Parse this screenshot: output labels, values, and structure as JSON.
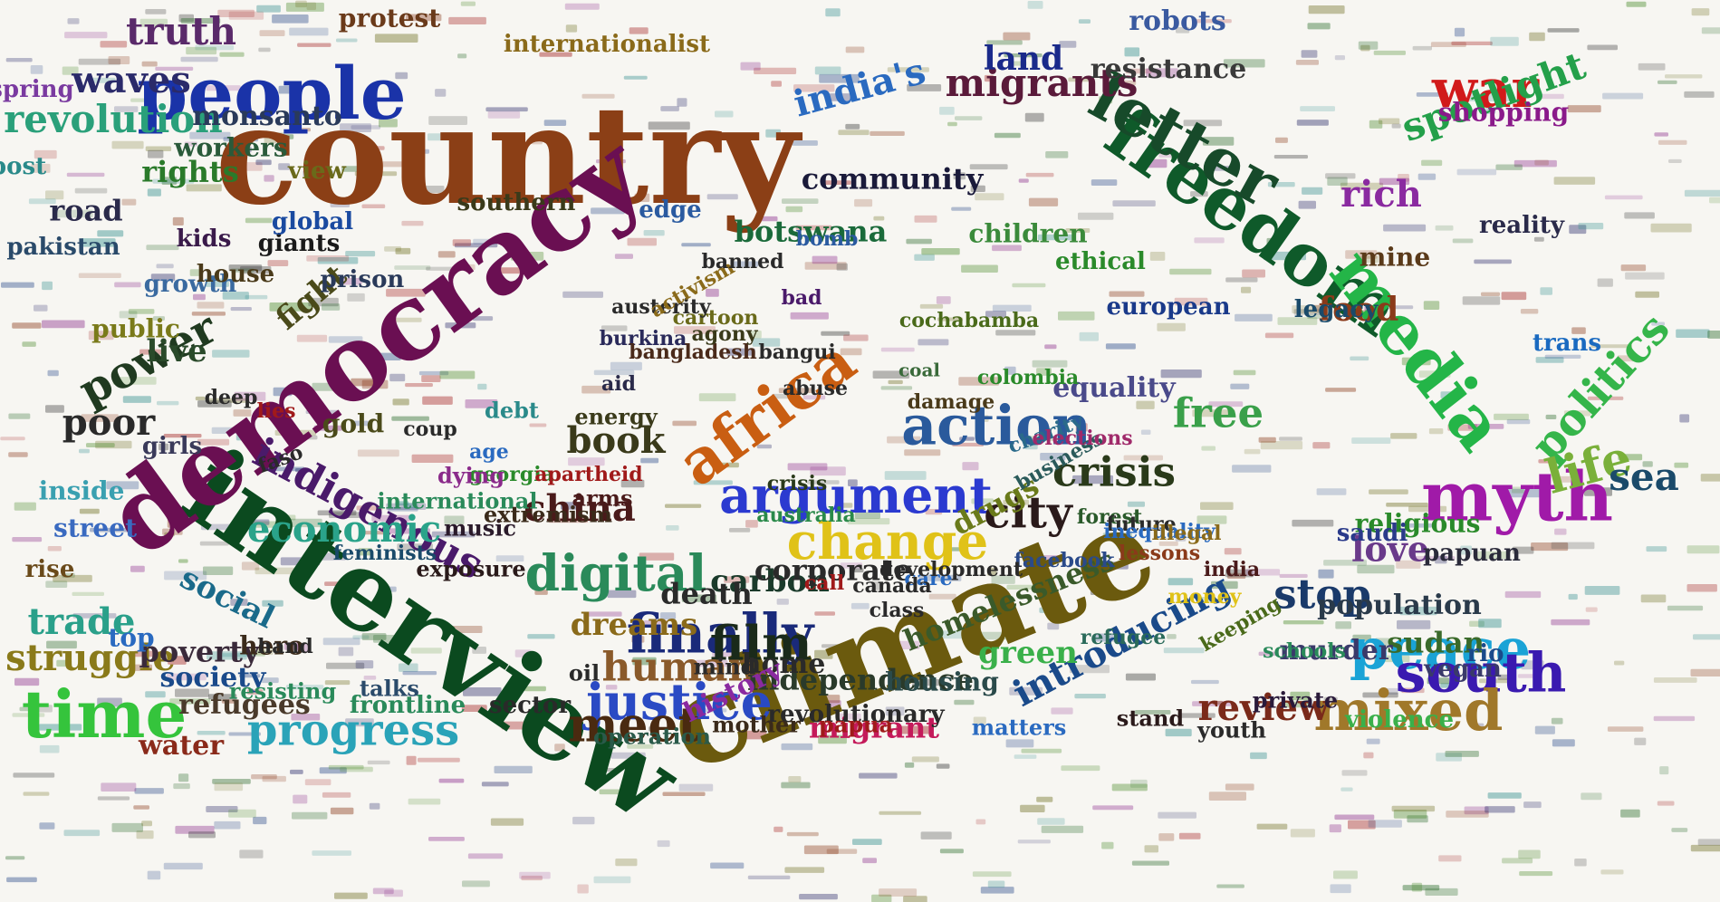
{
  "words": [
    {
      "text": "country",
      "color": "#8b3f16"
    },
    {
      "text": "climate",
      "color": "#6b5a0e"
    },
    {
      "text": "interview",
      "color": "#0b4a1f"
    },
    {
      "text": "democracy",
      "color": "#6a0f52"
    },
    {
      "text": "people",
      "color": "#1a33a8"
    },
    {
      "text": "freedom",
      "color": "#0f5a2a"
    },
    {
      "text": "letter",
      "color": "#174a2a"
    },
    {
      "text": "media",
      "color": "#24b548"
    },
    {
      "text": "time",
      "color": "#35c43c"
    },
    {
      "text": "africa",
      "color": "#c95e12"
    },
    {
      "text": "action",
      "color": "#2a5a9c"
    },
    {
      "text": "argument",
      "color": "#2b3ad0"
    },
    {
      "text": "war",
      "color": "#d11a1a"
    },
    {
      "text": "myth",
      "color": "#a01aa8"
    },
    {
      "text": "progress",
      "color": "#2aa3b8"
    },
    {
      "text": "change",
      "color": "#e0c218"
    },
    {
      "text": "peace",
      "color": "#1aa3d6"
    },
    {
      "text": "south",
      "color": "#3a1ab0"
    },
    {
      "text": "mixed",
      "color": "#a0782a"
    },
    {
      "text": "finally",
      "color": "#1a2a7a"
    },
    {
      "text": "digital",
      "color": "#2a8a5a"
    },
    {
      "text": "power",
      "color": "#203a20"
    },
    {
      "text": "indigenous",
      "color": "#4a1a6a"
    },
    {
      "text": "justice",
      "color": "#2a4ac4"
    },
    {
      "text": "meet",
      "color": "#4a2a10"
    },
    {
      "text": "politics",
      "color": "#35b54a"
    },
    {
      "text": "life",
      "color": "#7ab03a"
    },
    {
      "text": "spotlight",
      "color": "#24a04a"
    },
    {
      "text": "migrants",
      "color": "#5a1a3a"
    },
    {
      "text": "india's",
      "color": "#2a6ac0"
    },
    {
      "text": "revolution",
      "color": "#2aa07a"
    },
    {
      "text": "waves",
      "color": "#2a2a6a"
    },
    {
      "text": "truth",
      "color": "#5a2a6a"
    },
    {
      "text": "land",
      "color": "#1a2a8a"
    },
    {
      "text": "rich",
      "color": "#8a2aa0"
    },
    {
      "text": "sea",
      "color": "#1a4a6a"
    },
    {
      "text": "economic",
      "color": "#2aa38a"
    },
    {
      "text": "city",
      "color": "#2a1a1a"
    },
    {
      "text": "crisis",
      "color": "#2a3a1a"
    },
    {
      "text": "film",
      "color": "#1a2a1a"
    },
    {
      "text": "human",
      "color": "#8a5a2a"
    },
    {
      "text": "review",
      "color": "#7a2a1a"
    },
    {
      "text": "stop",
      "color": "#1a3a6a"
    },
    {
      "text": "introducing",
      "color": "#1a4a8a"
    },
    {
      "text": "struggle",
      "color": "#8a7a1a"
    },
    {
      "text": "trade",
      "color": "#2aa08a"
    },
    {
      "text": "poor",
      "color": "#2a2a2a"
    },
    {
      "text": "book",
      "color": "#3a3a1a"
    },
    {
      "text": "china",
      "color": "#4a1a1a"
    },
    {
      "text": "love",
      "color": "#6a3a8a"
    },
    {
      "text": "food",
      "color": "#8a3a1a"
    },
    {
      "text": "free",
      "color": "#3aa04a"
    },
    {
      "text": "community",
      "color": "#1a1a3a"
    },
    {
      "text": "botswana",
      "color": "#1a6a3a"
    },
    {
      "text": "road",
      "color": "#2a2a4a"
    },
    {
      "text": "rights",
      "color": "#2a7a2a"
    },
    {
      "text": "fight",
      "color": "#4a4a1a"
    },
    {
      "text": "live",
      "color": "#2a4a2a"
    },
    {
      "text": "social",
      "color": "#1a6a8a"
    },
    {
      "text": "poverty",
      "color": "#3a2a3a"
    },
    {
      "text": "green",
      "color": "#3ab04a"
    },
    {
      "text": "sudan",
      "color": "#3a6a2a"
    },
    {
      "text": "population",
      "color": "#2a3a4a"
    },
    {
      "text": "drugs",
      "color": "#6a7a1a"
    },
    {
      "text": "equality",
      "color": "#4a4a8a"
    },
    {
      "text": "monsanto",
      "color": "#2a3a5a"
    },
    {
      "text": "internationalist",
      "color": "#8a6a1a"
    },
    {
      "text": "protest",
      "color": "#6a3a1a"
    },
    {
      "text": "robots",
      "color": "#3a5aa0"
    },
    {
      "text": "resistance",
      "color": "#3a3a3a"
    },
    {
      "text": "shopping",
      "color": "#8a1a8a"
    },
    {
      "text": "dreams",
      "color": "#8a6a1a"
    },
    {
      "text": "carbon",
      "color": "#1a3a2a"
    },
    {
      "text": "death",
      "color": "#2a2a2a"
    },
    {
      "text": "corporate",
      "color": "#2a2a2a"
    },
    {
      "text": "independence",
      "color": "#2a3a2a"
    },
    {
      "text": "homelessness",
      "color": "#3a5a2a"
    },
    {
      "text": "migrant",
      "color": "#c41a5a"
    },
    {
      "text": "murder",
      "color": "#3a3a6a"
    },
    {
      "text": "home",
      "color": "#2a2a2a"
    },
    {
      "text": "housing",
      "color": "#2a4a4a"
    },
    {
      "text": "history",
      "color": "#8a2aa0"
    },
    {
      "text": "society",
      "color": "#1a4a8a"
    },
    {
      "text": "refugees",
      "color": "#4a3a2a"
    },
    {
      "text": "water",
      "color": "#8a2a1a"
    },
    {
      "text": "top",
      "color": "#2a6ac0"
    },
    {
      "text": "hero",
      "color": "#3a2a1a"
    },
    {
      "text": "girls",
      "color": "#3a3a5a"
    },
    {
      "text": "gold",
      "color": "#4a4a1a"
    },
    {
      "text": "kids",
      "color": "#3a1a4a"
    },
    {
      "text": "giants",
      "color": "#1a1a1a"
    },
    {
      "text": "global",
      "color": "#1a4aa0"
    },
    {
      "text": "growth",
      "color": "#3a6aa0"
    },
    {
      "text": "public",
      "color": "#7a7a1a"
    },
    {
      "text": "house",
      "color": "#4a3a1a"
    },
    {
      "text": "prison",
      "color": "#2a3a5a"
    },
    {
      "text": "inside",
      "color": "#3aa0b0"
    },
    {
      "text": "street",
      "color": "#3a6ac0"
    },
    {
      "text": "rise",
      "color": "#6a4a1a"
    },
    {
      "text": "spring",
      "color": "#7a3aa0"
    },
    {
      "text": "workers",
      "color": "#2a5a3a"
    },
    {
      "text": "post",
      "color": "#2a8a8a"
    },
    {
      "text": "view",
      "color": "#6a6a1a"
    },
    {
      "text": "pakistan",
      "color": "#2a4a6a"
    },
    {
      "text": "southern",
      "color": "#3a3a1a"
    },
    {
      "text": "edge",
      "color": "#2a5aa0"
    },
    {
      "text": "children",
      "color": "#3a8a3a"
    },
    {
      "text": "ethical",
      "color": "#2a8a2a"
    },
    {
      "text": "european",
      "color": "#1a3a8a"
    },
    {
      "text": "legacy",
      "color": "#1a4a6a"
    },
    {
      "text": "mine",
      "color": "#5a3a1a"
    },
    {
      "text": "reality",
      "color": "#2a2a4a"
    },
    {
      "text": "trans",
      "color": "#1a6ac0"
    },
    {
      "text": "religious",
      "color": "#2a8a2a"
    },
    {
      "text": "saudi",
      "color": "#2a3a8a"
    },
    {
      "text": "papuan",
      "color": "#2a2a3a"
    },
    {
      "text": "rio",
      "color": "#1a4a8a"
    },
    {
      "text": "vegan",
      "color": "#3a3a6a"
    },
    {
      "text": "violence",
      "color": "#3ab04a"
    },
    {
      "text": "youth",
      "color": "#2a2a2a"
    },
    {
      "text": "stand",
      "color": "#2a1a1a"
    },
    {
      "text": "private",
      "color": "#2a1a3a"
    },
    {
      "text": "revolutionary",
      "color": "#2a2a2a"
    },
    {
      "text": "matters",
      "color": "#2a6ac0"
    },
    {
      "text": "papua",
      "color": "#a01a1a"
    },
    {
      "text": "mother",
      "color": "#3a2a1a"
    },
    {
      "text": "operation",
      "color": "#2a5a4a"
    },
    {
      "text": "mind",
      "color": "#2a2a2a"
    },
    {
      "text": "frontline",
      "color": "#2a8a5a"
    },
    {
      "text": "resisting",
      "color": "#2a8a5a"
    },
    {
      "text": "talks",
      "color": "#2a4a6a"
    },
    {
      "text": "sector",
      "color": "#2a2a2a"
    },
    {
      "text": "oil",
      "color": "#2a2a2a"
    },
    {
      "text": "international",
      "color": "#2a8a5a"
    },
    {
      "text": "exposure",
      "color": "#2a1a1a"
    },
    {
      "text": "feminists",
      "color": "#1a4a6a"
    },
    {
      "text": "music",
      "color": "#2a1a2a"
    },
    {
      "text": "extremism",
      "color": "#3a2a1a"
    },
    {
      "text": "georgia",
      "color": "#2a8a2a"
    },
    {
      "text": "dying",
      "color": "#8a2a8a"
    },
    {
      "text": "debt",
      "color": "#2a8a8a"
    },
    {
      "text": "energy",
      "color": "#3a3a1a"
    },
    {
      "text": "arms",
      "color": "#4a1a1a"
    },
    {
      "text": "apartheid",
      "color": "#a01a1a"
    },
    {
      "text": "burkina",
      "color": "#2a2a5a"
    },
    {
      "text": "bangladesh",
      "color": "#4a2a1a"
    },
    {
      "text": "cartoon",
      "color": "#6a6a1a"
    },
    {
      "text": "austerity",
      "color": "#2a2a2a"
    },
    {
      "text": "activism",
      "color": "#8a6a1a"
    },
    {
      "text": "agony",
      "color": "#3a3a1a"
    },
    {
      "text": "aid",
      "color": "#2a2a4a"
    },
    {
      "text": "bad",
      "color": "#4a1a6a"
    },
    {
      "text": "bangui",
      "color": "#2a2a2a"
    },
    {
      "text": "banned",
      "color": "#2a2a2a"
    },
    {
      "text": "bomb",
      "color": "#2a5aa0"
    },
    {
      "text": "cochabamba",
      "color": "#4a6a1a"
    },
    {
      "text": "damage",
      "color": "#4a3a1a"
    },
    {
      "text": "coal",
      "color": "#3a6a3a"
    },
    {
      "text": "colombia",
      "color": "#2a8a2a"
    },
    {
      "text": "charity",
      "color": "#2a6a8a"
    },
    {
      "text": "business",
      "color": "#2a5a5a"
    },
    {
      "text": "elections",
      "color": "#a02a6a"
    },
    {
      "text": "facebook",
      "color": "#2a4a8a"
    },
    {
      "text": "forest",
      "color": "#2a5a2a"
    },
    {
      "text": "future",
      "color": "#2a2a2a"
    },
    {
      "text": "inequality",
      "color": "#2a6ac0"
    },
    {
      "text": "illegal",
      "color": "#8a6a1a"
    },
    {
      "text": "lessons",
      "color": "#8a3a1a"
    },
    {
      "text": "india",
      "color": "#4a1a1a"
    },
    {
      "text": "money",
      "color": "#e0c218"
    },
    {
      "text": "keeping",
      "color": "#4a6a1a"
    },
    {
      "text": "schools",
      "color": "#2a8a5a"
    },
    {
      "text": "refugee",
      "color": "#2a6a5a"
    },
    {
      "text": "care",
      "color": "#2a6ac0"
    },
    {
      "text": "class",
      "color": "#2a2a2a"
    },
    {
      "text": "call",
      "color": "#a01a1a"
    },
    {
      "text": "canada",
      "color": "#2a2a2a"
    },
    {
      "text": "development",
      "color": "#2a2a2a"
    },
    {
      "text": "crisis",
      "color": "#2a3a1a"
    },
    {
      "text": "australia",
      "color": "#2a8a4a"
    },
    {
      "text": "age",
      "color": "#2a6ac0"
    },
    {
      "text": "coup",
      "color": "#2a2a2a"
    },
    {
      "text": "deep",
      "color": "#2a2a2a"
    },
    {
      "text": "lies",
      "color": "#a01a1a"
    },
    {
      "text": "faso",
      "color": "#2a2a2a"
    },
    {
      "text": "hand",
      "color": "#2a2a2a"
    },
    {
      "text": "abuse",
      "color": "#2a2a2a"
    }
  ]
}
